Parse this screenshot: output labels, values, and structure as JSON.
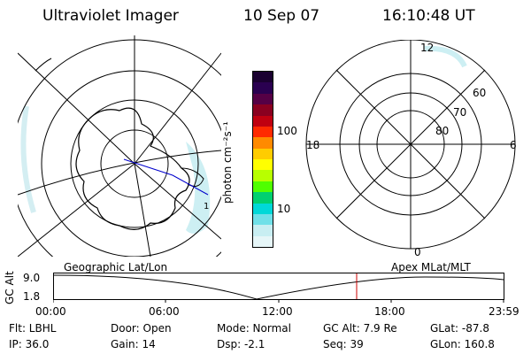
{
  "header": {
    "title": "Ultraviolet Imager",
    "date": "10 Sep 07",
    "time": "16:10:48 UT"
  },
  "colorbar": {
    "unit_label": "photon cm⁻²s⁻¹",
    "ticks": [
      "100",
      "10"
    ],
    "colors": [
      "#1a0030",
      "#2a0050",
      "#550045",
      "#8a0020",
      "#c00010",
      "#ff2a00",
      "#ff8a00",
      "#ffcc00",
      "#ffff00",
      "#b8ff00",
      "#50ff00",
      "#00d070",
      "#00d8d8",
      "#70e0e8",
      "#c8eef2",
      "#e6f6f8"
    ]
  },
  "polar_grid": {
    "clock_labels": [
      "12",
      "18",
      "6",
      "0"
    ],
    "lat_labels": [
      "60",
      "70",
      "80"
    ]
  },
  "timeline": {
    "left_caption": "Geographic Lat/Lon",
    "right_caption": "Apex MLat/MLT",
    "y_axis_label": "GC Alt",
    "y_ticks": [
      "9.0",
      "1.8"
    ],
    "x_ticks": [
      "00:00",
      "06:00",
      "12:00",
      "18:00",
      "23:59"
    ],
    "marker_color": "#cc0000"
  },
  "footer": {
    "filter": "Flt: LBHL",
    "ip": "IP: 36.0",
    "door": "Door: Open",
    "gain": "Gain: 14",
    "mode": "Mode: Normal",
    "dsp": "Dsp:    -2.1",
    "gc_alt": "GC Alt: 7.9 Re",
    "seq": "Seq: 39",
    "glat": "GLat: -87.8",
    "glon": "GLon: 160.8"
  }
}
